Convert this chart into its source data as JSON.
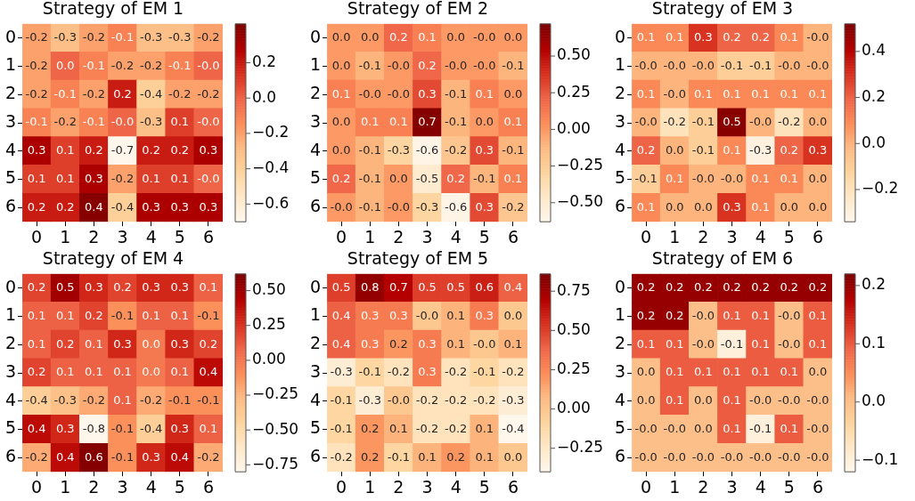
{
  "chart_data": [
    {
      "type": "heatmap",
      "title": "Strategy of EM 1",
      "categories": [
        "0",
        "1",
        "2",
        "3",
        "4",
        "5",
        "6"
      ],
      "y_categories": [
        "0",
        "1",
        "2",
        "3",
        "4",
        "5",
        "6"
      ],
      "cells": [
        [
          -0.2,
          -0.3,
          -0.2,
          -0.1,
          -0.3,
          -0.3,
          -0.2
        ],
        [
          -0.2,
          0.0,
          -0.1,
          -0.2,
          -0.2,
          -0.1,
          0.0
        ],
        [
          -0.2,
          -0.1,
          -0.2,
          0.2,
          -0.4,
          -0.2,
          -0.2
        ],
        [
          -0.1,
          -0.2,
          -0.1,
          0.0,
          -0.3,
          0.1,
          0.0
        ],
        [
          0.3,
          0.1,
          0.2,
          -0.7,
          0.2,
          0.2,
          0.3
        ],
        [
          0.1,
          0.1,
          0.3,
          -0.2,
          0.1,
          0.1,
          0.0
        ],
        [
          0.2,
          0.2,
          0.4,
          -0.4,
          0.3,
          0.3,
          0.3
        ]
      ],
      "cell_labels": [
        [
          "-0.2",
          "-0.3",
          "-0.2",
          "-0.1",
          "-0.3",
          "-0.3",
          "-0.2"
        ],
        [
          "-0.2",
          "0.0",
          "-0.1",
          "-0.2",
          "-0.2",
          "-0.1",
          "-0.0"
        ],
        [
          "-0.2",
          "-0.1",
          "-0.2",
          "0.2",
          "-0.4",
          "-0.2",
          "-0.2"
        ],
        [
          "-0.1",
          "-0.2",
          "-0.1",
          "-0.0",
          "-0.3",
          "0.1",
          "-0.0"
        ],
        [
          "0.3",
          "0.1",
          "0.2",
          "-0.7",
          "0.2",
          "0.2",
          "0.3"
        ],
        [
          "0.1",
          "0.1",
          "0.3",
          "-0.2",
          "0.1",
          "0.1",
          "-0.0"
        ],
        [
          "0.2",
          "0.2",
          "0.4",
          "-0.4",
          "0.3",
          "0.3",
          "0.3"
        ]
      ],
      "clim": [
        -0.7,
        0.42
      ],
      "cticks": [
        {
          "value": -0.6,
          "label": "−0.6"
        },
        {
          "value": -0.4,
          "label": "−0.4"
        },
        {
          "value": -0.2,
          "label": "−0.2"
        },
        {
          "value": 0,
          "label": "0.0"
        },
        {
          "value": 0.2,
          "label": "0.2"
        }
      ]
    },
    {
      "type": "heatmap",
      "title": "Strategy of EM 2",
      "categories": [
        "0",
        "1",
        "2",
        "3",
        "4",
        "5",
        "6"
      ],
      "y_categories": [
        "0",
        "1",
        "2",
        "3",
        "4",
        "5",
        "6"
      ],
      "cells": [
        [
          0.0,
          0.0,
          0.2,
          0.1,
          0.0,
          0.0,
          0.0
        ],
        [
          0.0,
          -0.1,
          0.0,
          0.2,
          0.0,
          0.0,
          -0.1
        ],
        [
          0.1,
          0.0,
          0.0,
          0.3,
          -0.1,
          0.1,
          0.0
        ],
        [
          0.0,
          0.1,
          0.1,
          0.7,
          -0.1,
          0.0,
          0.1
        ],
        [
          0.0,
          -0.1,
          -0.3,
          -0.6,
          -0.2,
          0.3,
          -0.1
        ],
        [
          0.2,
          -0.1,
          0.0,
          -0.5,
          0.2,
          -0.1,
          0.1
        ],
        [
          0.0,
          -0.1,
          0.0,
          -0.3,
          -0.6,
          0.3,
          -0.2
        ]
      ],
      "cell_labels": [
        [
          "0.0",
          "0.0",
          "0.2",
          "0.1",
          "0.0",
          "-0.0",
          "0.0"
        ],
        [
          "0.0",
          "-0.1",
          "-0.0",
          "0.2",
          "-0.0",
          "-0.0",
          "-0.1"
        ],
        [
          "0.1",
          "-0.0",
          "-0.0",
          "0.3",
          "-0.1",
          "0.1",
          "0.0"
        ],
        [
          "0.0",
          "0.1",
          "0.1",
          "0.7",
          "-0.1",
          "0.0",
          "0.1"
        ],
        [
          "0.0",
          "-0.1",
          "-0.3",
          "-0.6",
          "-0.2",
          "0.3",
          "-0.1"
        ],
        [
          "0.2",
          "-0.1",
          "0.0",
          "-0.5",
          "0.2",
          "-0.1",
          "0.1"
        ],
        [
          "-0.0",
          "-0.1",
          "-0.0",
          "-0.3",
          "-0.6",
          "0.3",
          "-0.2"
        ]
      ],
      "clim": [
        -0.63,
        0.72
      ],
      "cticks": [
        {
          "value": -0.5,
          "label": "−0.50"
        },
        {
          "value": -0.25,
          "label": "−0.25"
        },
        {
          "value": 0,
          "label": "0.00"
        },
        {
          "value": 0.25,
          "label": "0.25"
        },
        {
          "value": 0.5,
          "label": "0.50"
        }
      ]
    },
    {
      "type": "heatmap",
      "title": "Strategy of EM 3",
      "categories": [
        "0",
        "1",
        "2",
        "3",
        "4",
        "5",
        "6"
      ],
      "y_categories": [
        "0",
        "1",
        "2",
        "3",
        "4",
        "5",
        "6"
      ],
      "cells": [
        [
          0.1,
          0.1,
          0.3,
          0.2,
          0.2,
          0.1,
          0.0
        ],
        [
          0.0,
          0.0,
          0.0,
          -0.1,
          -0.1,
          0.0,
          0.0
        ],
        [
          0.1,
          0.0,
          0.1,
          0.1,
          0.1,
          0.1,
          0.1
        ],
        [
          0.0,
          -0.2,
          -0.1,
          0.5,
          0.0,
          -0.2,
          0.0
        ],
        [
          0.2,
          0.0,
          -0.1,
          0.1,
          -0.3,
          0.2,
          0.3
        ],
        [
          -0.1,
          0.1,
          0.0,
          0.0,
          0.1,
          0.1,
          0.0
        ],
        [
          0.1,
          0.0,
          0.0,
          0.3,
          0.1,
          0.0,
          0.0
        ]
      ],
      "cell_labels": [
        [
          "0.1",
          "0.1",
          "0.3",
          "0.2",
          "0.2",
          "0.1",
          "-0.0"
        ],
        [
          "-0.0",
          "-0.0",
          "-0.0",
          "-0.1",
          "-0.1",
          "-0.0",
          "-0.0"
        ],
        [
          "0.1",
          "-0.0",
          "0.1",
          "0.1",
          "0.1",
          "0.1",
          "0.1"
        ],
        [
          "-0.0",
          "-0.2",
          "-0.1",
          "0.5",
          "-0.0",
          "-0.2",
          "0.0"
        ],
        [
          "0.2",
          "0.0",
          "-0.1",
          "0.1",
          "-0.3",
          "0.2",
          "0.3"
        ],
        [
          "-0.1",
          "0.1",
          "-0.0",
          "-0.0",
          "0.1",
          "0.1",
          "0.0"
        ],
        [
          "0.1",
          "0.0",
          "0.0",
          "0.3",
          "0.1",
          "0.0",
          "0.0"
        ]
      ],
      "clim": [
        -0.34,
        0.52
      ],
      "cticks": [
        {
          "value": -0.2,
          "label": "−0.2"
        },
        {
          "value": 0,
          "label": "0.0"
        },
        {
          "value": 0.2,
          "label": "0.2"
        },
        {
          "value": 0.4,
          "label": "0.4"
        }
      ]
    },
    {
      "type": "heatmap",
      "title": "Strategy of EM 4",
      "categories": [
        "0",
        "1",
        "2",
        "3",
        "4",
        "5",
        "6"
      ],
      "y_categories": [
        "0",
        "1",
        "2",
        "3",
        "4",
        "5",
        "6"
      ],
      "cells": [
        [
          0.2,
          0.5,
          0.3,
          0.2,
          0.3,
          0.3,
          0.1
        ],
        [
          0.1,
          0.1,
          0.2,
          -0.1,
          0.1,
          0.1,
          -0.1
        ],
        [
          0.1,
          0.2,
          0.1,
          0.3,
          0.0,
          0.3,
          0.2
        ],
        [
          0.2,
          0.1,
          0.1,
          0.1,
          0.0,
          0.1,
          0.4
        ],
        [
          -0.4,
          -0.3,
          -0.2,
          0.1,
          -0.2,
          -0.1,
          -0.1
        ],
        [
          0.4,
          0.3,
          -0.8,
          -0.1,
          -0.4,
          0.3,
          0.1
        ],
        [
          -0.2,
          0.4,
          0.6,
          -0.1,
          0.3,
          0.4,
          -0.2
        ]
      ],
      "cell_labels": [
        [
          "0.2",
          "0.5",
          "0.3",
          "0.2",
          "0.3",
          "0.3",
          "0.1"
        ],
        [
          "0.1",
          "0.1",
          "0.2",
          "-0.1",
          "0.1",
          "0.1",
          "-0.1"
        ],
        [
          "0.1",
          "0.2",
          "0.1",
          "0.3",
          "0.0",
          "0.3",
          "0.2"
        ],
        [
          "0.2",
          "0.1",
          "0.1",
          "0.1",
          "0.0",
          "0.1",
          "0.4"
        ],
        [
          "-0.4",
          "-0.3",
          "-0.2",
          "0.1",
          "-0.2",
          "-0.1",
          "-0.1"
        ],
        [
          "0.4",
          "0.3",
          "-0.8",
          "-0.1",
          "-0.4",
          "0.3",
          "0.1"
        ],
        [
          "-0.2",
          "0.4",
          "0.6",
          "-0.1",
          "0.3",
          "0.4",
          "-0.2"
        ]
      ],
      "clim": [
        -0.8,
        0.62
      ],
      "cticks": [
        {
          "value": -0.75,
          "label": "−0.75"
        },
        {
          "value": -0.5,
          "label": "−0.50"
        },
        {
          "value": -0.25,
          "label": "−0.25"
        },
        {
          "value": 0,
          "label": "0.00"
        },
        {
          "value": 0.25,
          "label": "0.25"
        },
        {
          "value": 0.5,
          "label": "0.50"
        }
      ]
    },
    {
      "type": "heatmap",
      "title": "Strategy of EM 5",
      "categories": [
        "0",
        "1",
        "2",
        "3",
        "4",
        "5",
        "6"
      ],
      "y_categories": [
        "0",
        "1",
        "2",
        "3",
        "4",
        "5",
        "6"
      ],
      "cells": [
        [
          0.5,
          0.8,
          0.7,
          0.5,
          0.5,
          0.6,
          0.4
        ],
        [
          0.4,
          0.3,
          0.3,
          0.0,
          0.1,
          0.3,
          0.0
        ],
        [
          0.4,
          0.3,
          0.2,
          0.3,
          0.1,
          0.0,
          0.1
        ],
        [
          -0.3,
          -0.1,
          -0.2,
          0.3,
          -0.2,
          -0.1,
          -0.2
        ],
        [
          -0.1,
          -0.3,
          0.0,
          -0.2,
          -0.2,
          -0.2,
          -0.3
        ],
        [
          -0.1,
          0.2,
          0.1,
          -0.2,
          -0.2,
          0.1,
          -0.4
        ],
        [
          -0.2,
          0.2,
          -0.1,
          0.1,
          0.2,
          0.1,
          0.0
        ]
      ],
      "cell_labels": [
        [
          "0.5",
          "0.8",
          "0.7",
          "0.5",
          "0.5",
          "0.6",
          "0.4"
        ],
        [
          "0.4",
          "0.3",
          "0.3",
          "-0.0",
          "0.1",
          "0.3",
          "0.0"
        ],
        [
          "0.4",
          "0.3",
          "0.2",
          "0.3",
          "0.1",
          "-0.0",
          "0.1"
        ],
        [
          "-0.3",
          "-0.1",
          "-0.2",
          "0.3",
          "-0.2",
          "-0.1",
          "-0.2"
        ],
        [
          "-0.1",
          "-0.3",
          "-0.0",
          "-0.2",
          "-0.2",
          "-0.2",
          "-0.3"
        ],
        [
          "-0.1",
          "0.2",
          "0.1",
          "-0.2",
          "-0.2",
          "0.1",
          "-0.4"
        ],
        [
          "-0.2",
          "0.2",
          "-0.1",
          "0.1",
          "0.2",
          "0.1",
          "0.0"
        ]
      ],
      "clim": [
        -0.4,
        0.86
      ],
      "cticks": [
        {
          "value": -0.25,
          "label": "−0.25"
        },
        {
          "value": 0,
          "label": "0.00"
        },
        {
          "value": 0.25,
          "label": "0.25"
        },
        {
          "value": 0.5,
          "label": "0.50"
        },
        {
          "value": 0.75,
          "label": "0.75"
        }
      ]
    },
    {
      "type": "heatmap",
      "title": "Strategy of EM 6",
      "categories": [
        "0",
        "1",
        "2",
        "3",
        "4",
        "5",
        "6"
      ],
      "y_categories": [
        "0",
        "1",
        "2",
        "3",
        "4",
        "5",
        "6"
      ],
      "cells": [
        [
          0.2,
          0.2,
          0.2,
          0.2,
          0.2,
          0.2,
          0.2
        ],
        [
          0.2,
          0.2,
          0.0,
          0.1,
          0.1,
          0.0,
          0.1
        ],
        [
          0.1,
          0.1,
          0.0,
          -0.1,
          0.1,
          0.0,
          0.1
        ],
        [
          0.0,
          0.1,
          0.1,
          0.1,
          0.1,
          0.1,
          0.0
        ],
        [
          0.0,
          0.1,
          0.0,
          0.1,
          0.0,
          0.0,
          0.0
        ],
        [
          0.0,
          0.0,
          0.0,
          0.1,
          -0.1,
          0.1,
          0.0
        ],
        [
          0.0,
          0.0,
          0.0,
          0.0,
          0.0,
          0.0,
          0.0
        ]
      ],
      "cell_labels": [
        [
          "0.2",
          "0.2",
          "0.2",
          "0.2",
          "0.2",
          "0.2",
          "0.2"
        ],
        [
          "0.2",
          "0.2",
          "-0.0",
          "0.1",
          "0.1",
          "-0.0",
          "0.1"
        ],
        [
          "0.1",
          "0.1",
          "-0.0",
          "-0.1",
          "0.1",
          "-0.0",
          "0.1"
        ],
        [
          "0.0",
          "0.1",
          "0.1",
          "0.1",
          "0.1",
          "0.1",
          "0.0"
        ],
        [
          "0.0",
          "0.1",
          "0.0",
          "0.1",
          "-0.0",
          "-0.0",
          "-0.0"
        ],
        [
          "-0.0",
          "-0.0",
          "0.0",
          "0.1",
          "-0.1",
          "0.1",
          "-0.0"
        ],
        [
          "-0.0",
          "-0.0",
          "-0.0",
          "-0.0",
          "-0.0",
          "-0.0",
          "-0.0"
        ]
      ],
      "clim": [
        -0.12,
        0.22
      ],
      "cticks": [
        {
          "value": -0.1,
          "label": "−0.1"
        },
        {
          "value": 0,
          "label": "0.0"
        },
        {
          "value": 0.1,
          "label": "0.1"
        },
        {
          "value": 0.2,
          "label": "0.2"
        }
      ]
    }
  ]
}
